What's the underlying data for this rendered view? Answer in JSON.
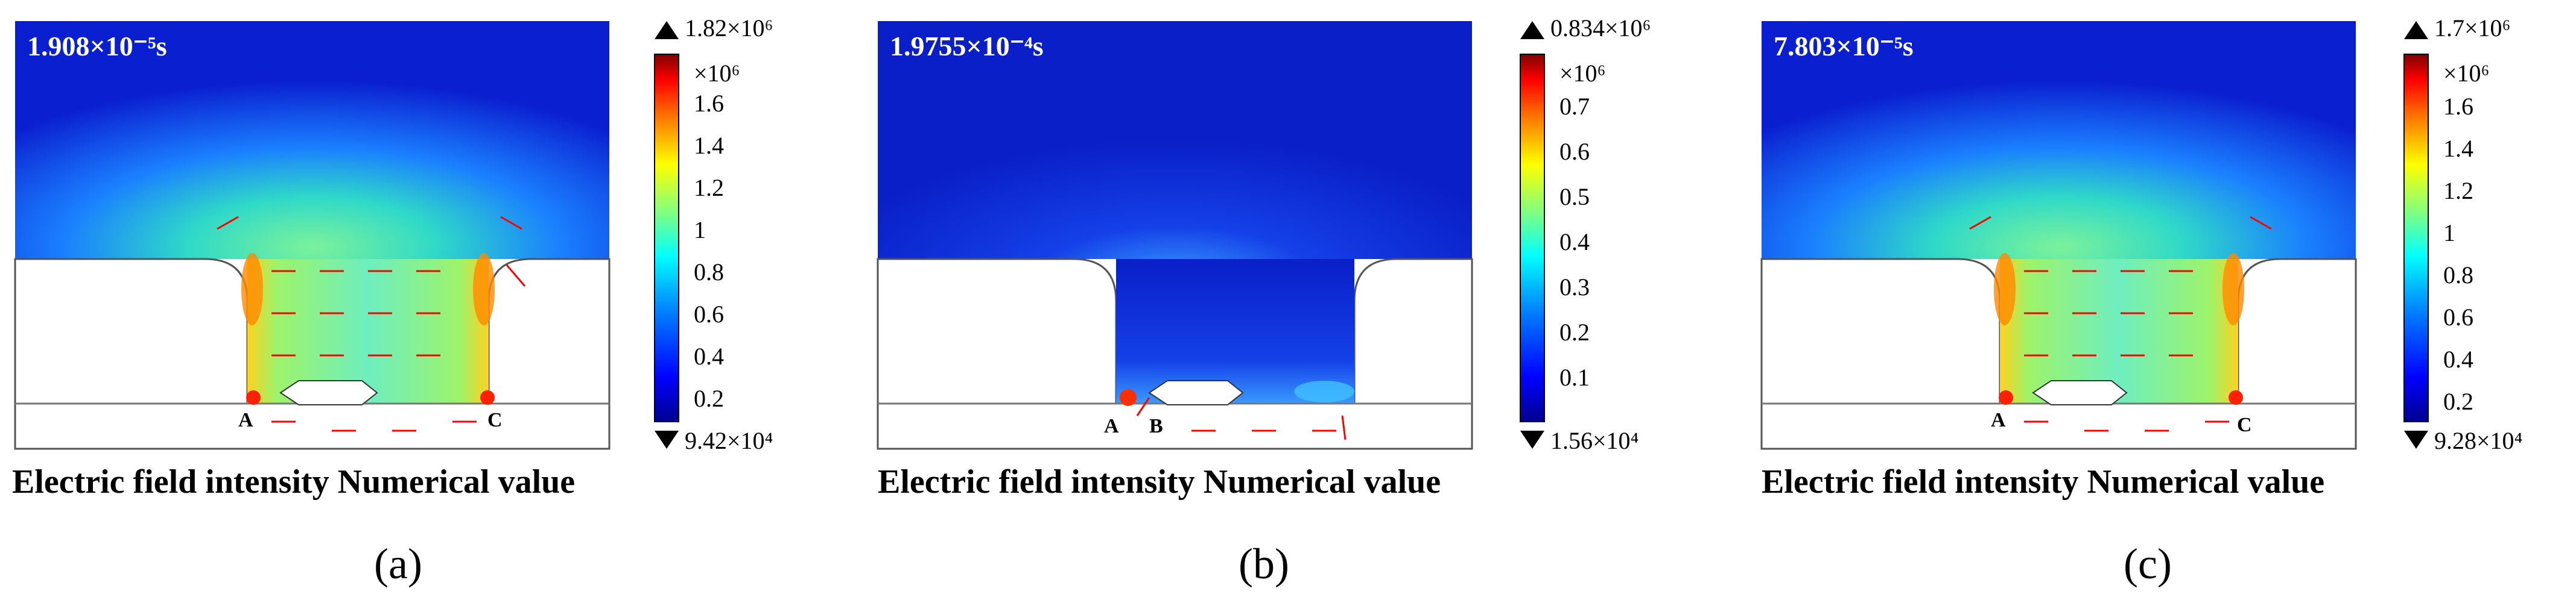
{
  "colorbar_colors": [
    "#00008f",
    "#0000ff",
    "#0080ff",
    "#00ffff",
    "#80ff80",
    "#ffff00",
    "#ff8000",
    "#ff0000",
    "#800000"
  ],
  "arrow_color": "#ff0000",
  "panels": [
    {
      "id": "a",
      "time_label": "1.908×10⁻⁵s",
      "colorbar": {
        "max_label": "1.82×10⁶",
        "multiplier_label": "×10⁶",
        "ticks": [
          "1.6",
          "1.4",
          "1.2",
          "1",
          "0.8",
          "0.6",
          "0.4",
          "0.2"
        ],
        "min_label": "9.42×10⁴"
      },
      "point_labels": [
        "A",
        "C"
      ],
      "caption": "Electric field intensity Numerical value",
      "subcaption": "(a)"
    },
    {
      "id": "b",
      "time_label": "1.9755×10⁻⁴s",
      "colorbar": {
        "max_label": "0.834×10⁶",
        "multiplier_label": "×10⁶",
        "ticks": [
          "0.7",
          "0.6",
          "0.5",
          "0.4",
          "0.3",
          "0.2",
          "0.1"
        ],
        "min_label": "1.56×10⁴"
      },
      "point_labels": [
        "A",
        "B"
      ],
      "caption": "Electric field intensity Numerical value",
      "subcaption": "(b)"
    },
    {
      "id": "c",
      "time_label": "7.803×10⁻⁵s",
      "colorbar": {
        "max_label": "1.7×10⁶",
        "multiplier_label": "×10⁶",
        "ticks": [
          "1.6",
          "1.4",
          "1.2",
          "1",
          "0.8",
          "0.6",
          "0.4",
          "0.2"
        ],
        "min_label": "9.28×10⁴"
      },
      "point_labels": [
        "A",
        "C"
      ],
      "caption": "Electric field intensity Numerical value",
      "subcaption": "(c)"
    }
  ]
}
